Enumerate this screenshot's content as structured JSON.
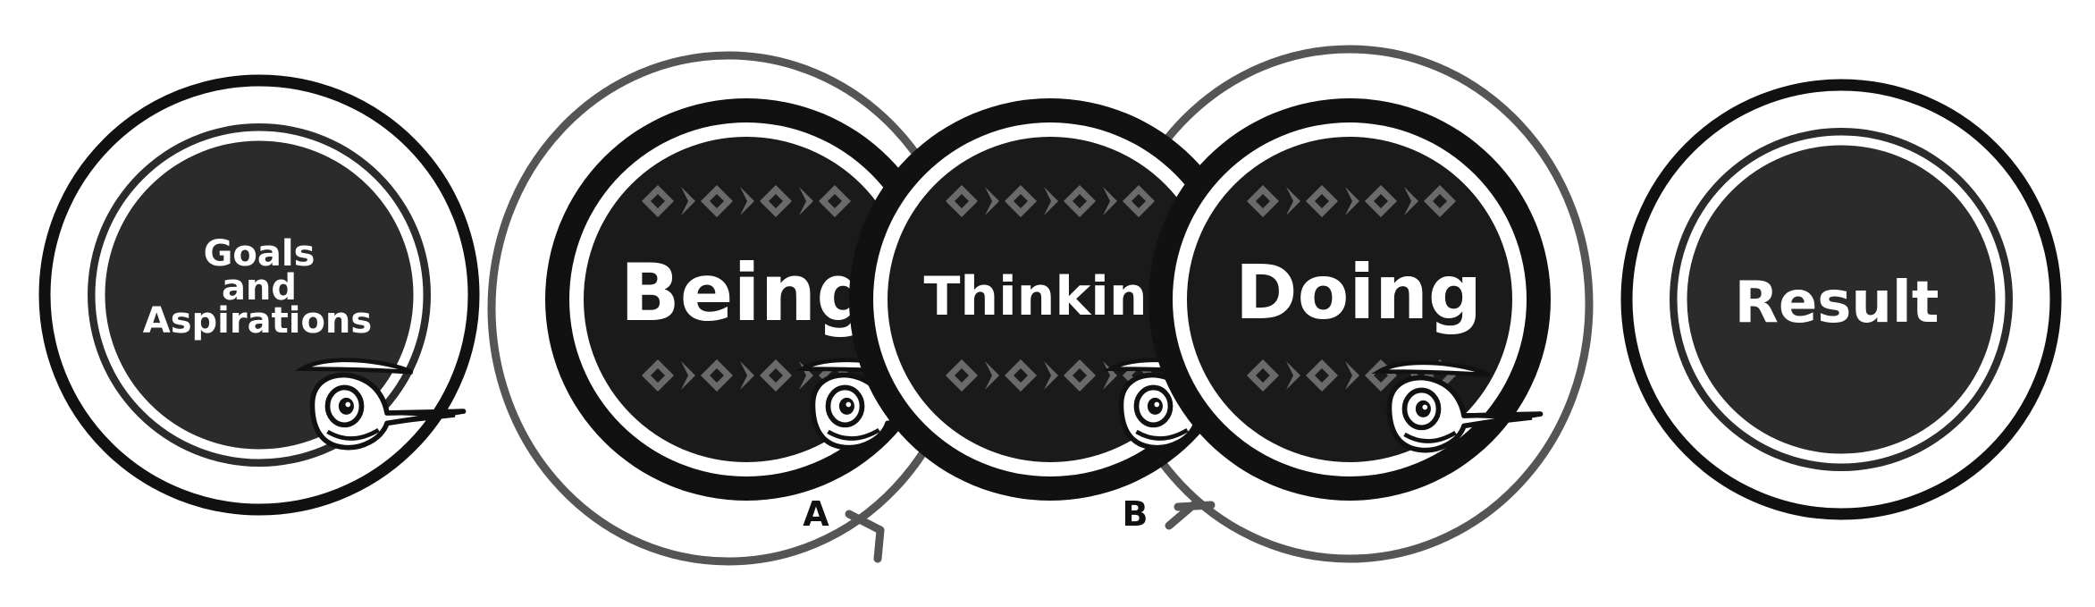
{
  "diagram": {
    "nodes": [
      {
        "id": "goals",
        "lines": [
          "Goals",
          "and",
          "Aspirations"
        ]
      },
      {
        "id": "being",
        "lines": [
          "Being"
        ]
      },
      {
        "id": "thinking",
        "lines": [
          "Thinking"
        ]
      },
      {
        "id": "doing",
        "lines": [
          "Doing"
        ]
      },
      {
        "id": "result",
        "lines": [
          "Result"
        ]
      }
    ],
    "loops": [
      {
        "id": "loop-a",
        "label": "A"
      },
      {
        "id": "loop-b",
        "label": "B"
      }
    ]
  },
  "colors": {
    "ink": "#111111",
    "disc": "#2b2b2b",
    "loop": "#555555",
    "pattern": "#6a6a6a",
    "text": "#ffffff"
  },
  "icons": [
    "pattern-band",
    "bird-head-icon"
  ]
}
